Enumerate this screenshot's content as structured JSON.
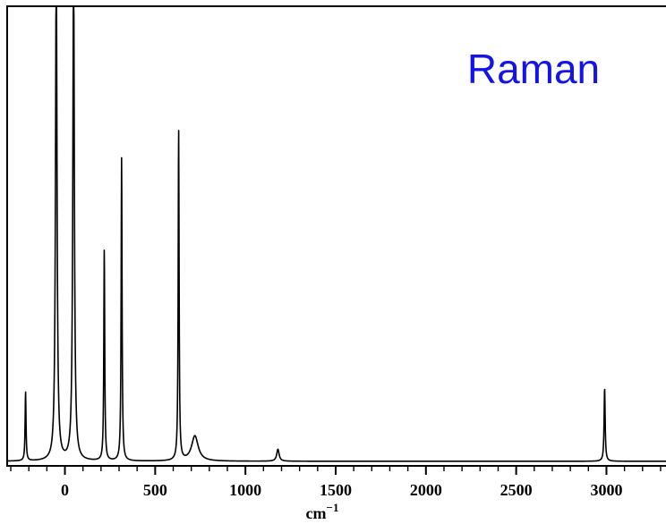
{
  "chart_data": {
    "type": "line",
    "title": "",
    "annotation": "Raman",
    "annotation_color": "#1414e6",
    "line_color": "#000000",
    "xlabel_base": "cm",
    "xlabel_exp": "−1",
    "ylabel": "",
    "xlim": [
      -320,
      3330
    ],
    "ylim": [
      0,
      1
    ],
    "grid": false,
    "legend": "none",
    "x_ticks_major": [
      0,
      500,
      1000,
      1500,
      2000,
      2500,
      3000
    ],
    "x_tick_labels": [
      "0",
      "500",
      "1000",
      "1500",
      "2000",
      "2500",
      "3000"
    ],
    "x_ticks_minor_step": 100,
    "baseline": 0.01,
    "peaks": [
      {
        "x": -218,
        "height": 0.15,
        "width": 3
      },
      {
        "x": -48,
        "height": 1.1,
        "width": 5
      },
      {
        "x": 48,
        "height": 1.1,
        "width": 5
      },
      {
        "x": 218,
        "height": 0.46,
        "width": 3
      },
      {
        "x": 314,
        "height": 0.66,
        "width": 3
      },
      {
        "x": 630,
        "height": 0.72,
        "width": 3
      },
      {
        "x": 720,
        "height": 0.055,
        "width": 22
      },
      {
        "x": 1180,
        "height": 0.026,
        "width": 8
      },
      {
        "x": 2990,
        "height": 0.16,
        "width": 3.5
      }
    ]
  }
}
